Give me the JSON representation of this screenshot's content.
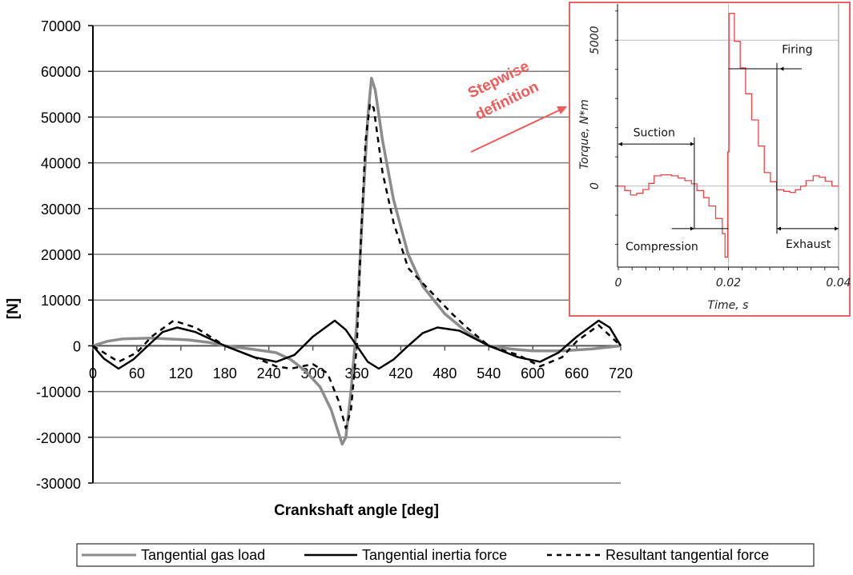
{
  "chart_data": [
    {
      "type": "line",
      "title": "",
      "xlabel": "Crankshaft angle [deg]",
      "ylabel": "[N]",
      "xlim": [
        0,
        720
      ],
      "ylim": [
        -30000,
        70000
      ],
      "xticks": [
        "0",
        "60",
        "120",
        "180",
        "240",
        "300",
        "360",
        "420",
        "480",
        "540",
        "600",
        "660",
        "720"
      ],
      "yticks": [
        "70000",
        "60000",
        "50000",
        "40000",
        "30000",
        "20000",
        "10000",
        "0",
        "-10000",
        "-20000",
        "-30000"
      ],
      "grid": "horizontal",
      "legend_position": "bottom",
      "series": [
        {
          "name": "Tangential gas load",
          "color": "#8c8c8c",
          "style": "solid",
          "points": [
            [
              0,
              0
            ],
            [
              20,
              1000
            ],
            [
              40,
              1500
            ],
            [
              80,
              1700
            ],
            [
              130,
              1300
            ],
            [
              160,
              700
            ],
            [
              180,
              0
            ],
            [
              220,
              -800
            ],
            [
              250,
              -1500
            ],
            [
              270,
              -3000
            ],
            [
              290,
              -5500
            ],
            [
              310,
              -9000
            ],
            [
              325,
              -14000
            ],
            [
              335,
              -19000
            ],
            [
              340,
              -21500
            ],
            [
              345,
              -20000
            ],
            [
              352,
              -10000
            ],
            [
              360,
              5000
            ],
            [
              368,
              30000
            ],
            [
              375,
              50000
            ],
            [
              380,
              58500
            ],
            [
              385,
              56000
            ],
            [
              395,
              45000
            ],
            [
              410,
              32000
            ],
            [
              430,
              20000
            ],
            [
              450,
              13000
            ],
            [
              480,
              7000
            ],
            [
              510,
              3000
            ],
            [
              540,
              0
            ],
            [
              570,
              -700
            ],
            [
              600,
              -1100
            ],
            [
              640,
              -1100
            ],
            [
              680,
              -700
            ],
            [
              720,
              0
            ]
          ]
        },
        {
          "name": "Tangential inertia force",
          "color": "#000000",
          "style": "solid",
          "points": [
            [
              0,
              0
            ],
            [
              15,
              -2800
            ],
            [
              35,
              -5000
            ],
            [
              55,
              -3000
            ],
            [
              75,
              0
            ],
            [
              95,
              3000
            ],
            [
              115,
              4000
            ],
            [
              140,
              3000
            ],
            [
              180,
              0
            ],
            [
              220,
              -2500
            ],
            [
              250,
              -3500
            ],
            [
              275,
              -2000
            ],
            [
              300,
              2000
            ],
            [
              330,
              5500
            ],
            [
              345,
              3500
            ],
            [
              360,
              0
            ],
            [
              375,
              -3500
            ],
            [
              390,
              -5000
            ],
            [
              410,
              -3000
            ],
            [
              430,
              0
            ],
            [
              450,
              2800
            ],
            [
              470,
              4000
            ],
            [
              500,
              3300
            ],
            [
              540,
              0
            ],
            [
              580,
              -2500
            ],
            [
              610,
              -3500
            ],
            [
              635,
              -1500
            ],
            [
              660,
              2000
            ],
            [
              690,
              5500
            ],
            [
              705,
              4000
            ],
            [
              720,
              0
            ]
          ]
        },
        {
          "name": "Resultant tangential force",
          "color": "#000000",
          "style": "dashed",
          "points": [
            [
              0,
              0
            ],
            [
              35,
              -3500
            ],
            [
              60,
              -1500
            ],
            [
              80,
              2000
            ],
            [
              110,
              5500
            ],
            [
              140,
              4000
            ],
            [
              180,
              0
            ],
            [
              220,
              -2500
            ],
            [
              250,
              -4500
            ],
            [
              270,
              -5000
            ],
            [
              300,
              -4000
            ],
            [
              320,
              -6000
            ],
            [
              335,
              -12000
            ],
            [
              345,
              -18000
            ],
            [
              352,
              -14000
            ],
            [
              360,
              0
            ],
            [
              366,
              25000
            ],
            [
              372,
              45000
            ],
            [
              378,
              53000
            ],
            [
              383,
              52000
            ],
            [
              395,
              38000
            ],
            [
              410,
              27000
            ],
            [
              430,
              17000
            ],
            [
              460,
              12000
            ],
            [
              490,
              7000
            ],
            [
              510,
              4000
            ],
            [
              540,
              0
            ],
            [
              580,
              -2000
            ],
            [
              610,
              -4500
            ],
            [
              640,
              -2500
            ],
            [
              660,
              1000
            ],
            [
              690,
              4500
            ],
            [
              720,
              0
            ]
          ]
        }
      ],
      "annotation": "Stepwise definition"
    },
    {
      "type": "line",
      "title": "",
      "xlabel": "Time, s",
      "ylabel": "Torque, N*m",
      "xlim": [
        0,
        0.04
      ],
      "ylim": [
        -2780,
        6240
      ],
      "xticks": [
        "0",
        "0.02",
        "0.04"
      ],
      "yticks": [
        "0",
        "5000"
      ],
      "series": [
        {
          "name": "Stepwise torque",
          "color": "#e8474a",
          "style": "step",
          "steps": [
            [
              0,
              0
            ],
            [
              0.00117,
              -155
            ],
            [
              0.00223,
              -310
            ],
            [
              0.00335,
              -250
            ],
            [
              0.00447,
              -120
            ],
            [
              0.00553,
              91
            ],
            [
              0.0065,
              347
            ],
            [
              0.00772,
              383
            ],
            [
              0.00966,
              347
            ],
            [
              0.01087,
              274
            ],
            [
              0.01209,
              183
            ],
            [
              0.0133,
              73
            ],
            [
              0.01427,
              -155
            ],
            [
              0.01549,
              -400
            ],
            [
              0.01646,
              -685
            ],
            [
              0.01767,
              -1114
            ],
            [
              0.01888,
              -1635
            ],
            [
              0.01937,
              -2440
            ],
            [
              0.01985,
              1170
            ],
            [
              0.0201,
              5920
            ],
            [
              0.02107,
              4960
            ],
            [
              0.02214,
              4050
            ],
            [
              0.02311,
              3160
            ],
            [
              0.02422,
              2265
            ],
            [
              0.02544,
              1370
            ],
            [
              0.0265,
              457
            ],
            [
              0.02762,
              146
            ],
            [
              0.02874,
              -128
            ],
            [
              0.03005,
              -183
            ],
            [
              0.03117,
              -219
            ],
            [
              0.03214,
              -128
            ],
            [
              0.03311,
              0
            ],
            [
              0.03408,
              183
            ],
            [
              0.03539,
              347
            ],
            [
              0.0365,
              301
            ],
            [
              0.03757,
              164
            ],
            [
              0.03879,
              0
            ],
            [
              0.04,
              0
            ]
          ]
        }
      ],
      "phases": [
        "Suction",
        "Compression",
        "Firing",
        "Exhaust"
      ]
    }
  ]
}
